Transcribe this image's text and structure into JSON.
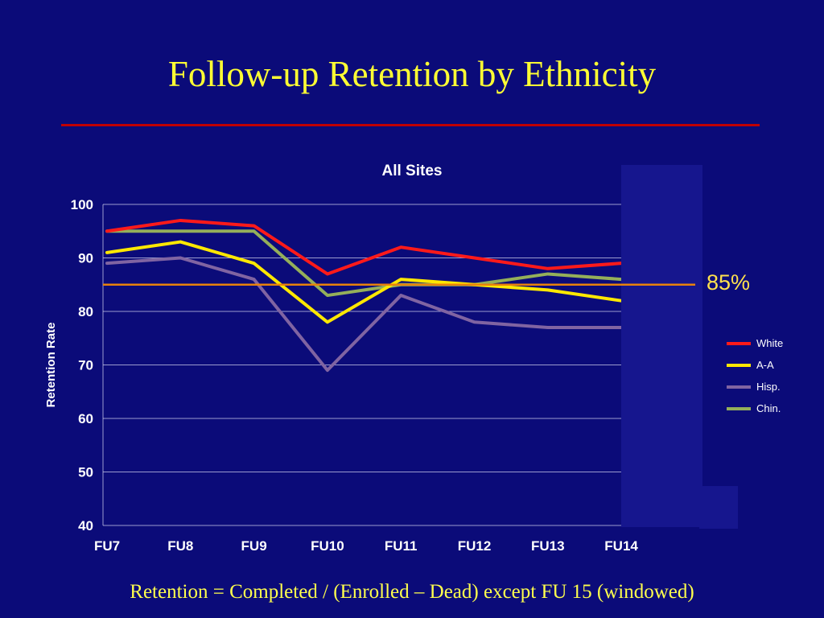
{
  "slide": {
    "title": "Follow-up Retention by Ethnicity",
    "caption": "Retention = Completed / (Enrolled – Dead) except FU 15 (windowed)"
  },
  "colors": {
    "background": "#0B0B79",
    "overlay": "#16168E",
    "title_color": "#FFFF33",
    "rule_color": "#C00000",
    "caption_color": "#FFFF4D",
    "ref_label_color": "#FFE14D"
  },
  "chart_data": {
    "type": "line",
    "title": "All Sites",
    "xlabel": "",
    "ylabel": "Retention Rate",
    "categories": [
      "FU7",
      "FU8",
      "FU9",
      "FU10",
      "FU11",
      "FU12",
      "FU13",
      "FU14"
    ],
    "ylim": [
      40,
      100
    ],
    "yticks": [
      40,
      50,
      60,
      70,
      80,
      90,
      100
    ],
    "grid": true,
    "legend_position": "right",
    "series": [
      {
        "name": "White",
        "color": "#FF1A1A",
        "values": [
          95,
          97,
          96,
          87,
          92,
          90,
          88,
          89
        ]
      },
      {
        "name": "A-A",
        "color": "#FFE800",
        "values": [
          91,
          93,
          89,
          78,
          86,
          85,
          84,
          82
        ]
      },
      {
        "name": "Hisp.",
        "color": "#8064A2",
        "values": [
          89,
          90,
          86,
          69,
          83,
          78,
          77,
          77
        ]
      },
      {
        "name": "Chin.",
        "color": "#94AF5A",
        "values": [
          95,
          95,
          95,
          83,
          85,
          85,
          87,
          86
        ]
      }
    ],
    "ref_line": {
      "value": 85,
      "label": "85%",
      "color": "#E8820C"
    }
  }
}
